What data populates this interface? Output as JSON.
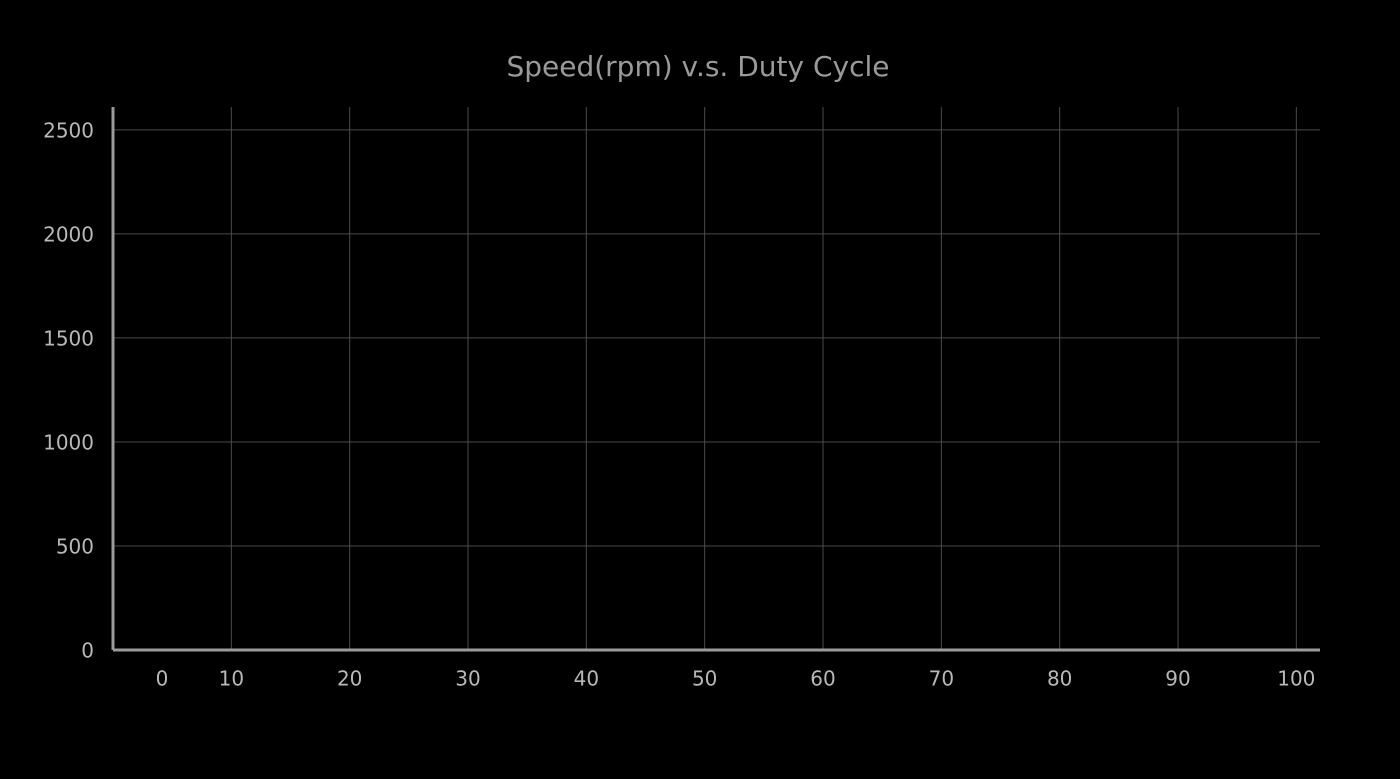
{
  "chart_data": {
    "type": "line",
    "title": "Speed(rpm)  v.s.  Duty Cycle",
    "xlim": [
      0,
      102
    ],
    "xticks": [
      0,
      10,
      20,
      30,
      40,
      50,
      60,
      70,
      80,
      90,
      100
    ],
    "ylim": [
      0,
      2610
    ],
    "yticks": [
      0,
      500,
      1000,
      1500,
      2000,
      2500
    ],
    "grid": true
  }
}
